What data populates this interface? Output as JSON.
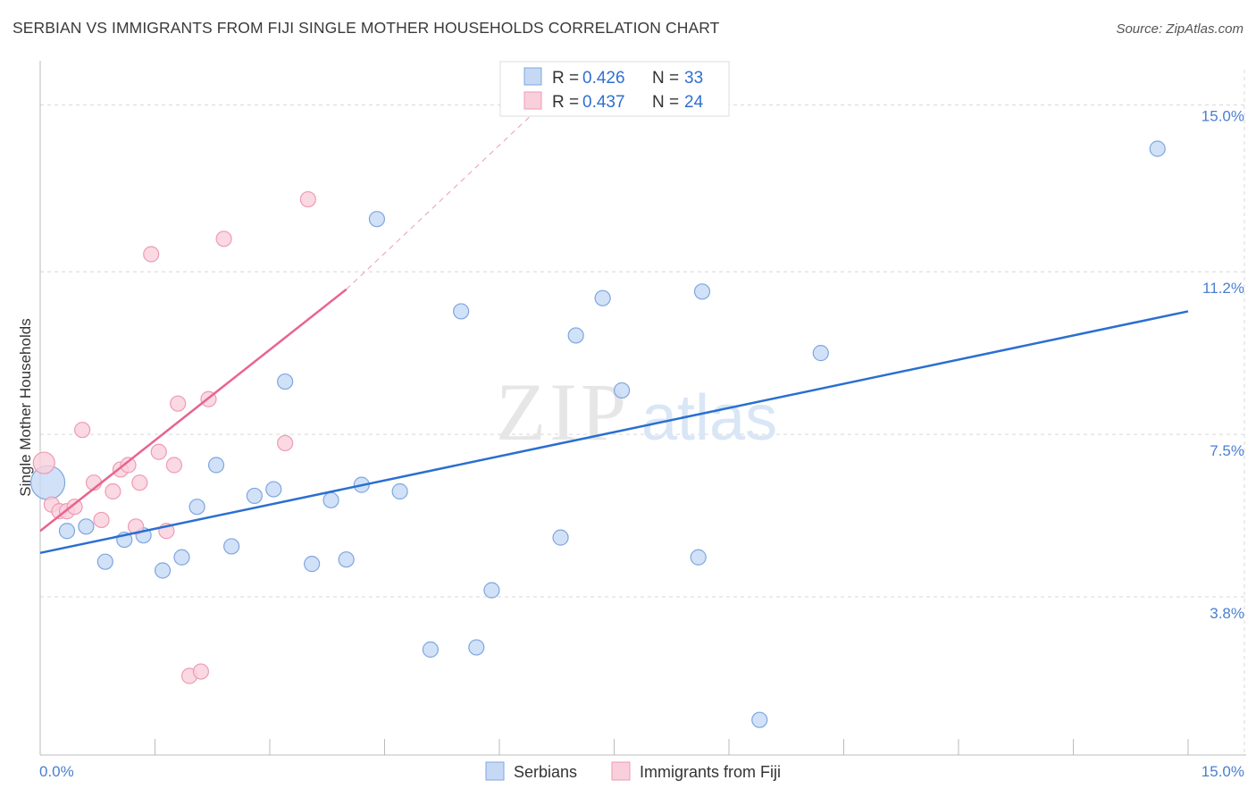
{
  "title": "SERBIAN VS IMMIGRANTS FROM FIJI SINGLE MOTHER HOUSEHOLDS CORRELATION CHART",
  "source": "Source: ZipAtlas.com",
  "colors": {
    "serbians_fill": "#c5d9f5",
    "serbians_stroke": "#7ea6e0",
    "serbians_line": "#2a6fd0",
    "fiji_fill": "#f9cfdc",
    "fiji_stroke": "#ee9ab5",
    "fiji_line": "#e8648f",
    "grid": "#d8d8d8",
    "tick_text": "#4a7fd0"
  },
  "chart_data": {
    "type": "scatter",
    "xlabel": "",
    "ylabel": "Single Mother Households",
    "xlim": [
      0,
      15
    ],
    "ylim": [
      0.2,
      15.8
    ],
    "x_tick_labels": [
      "0.0%",
      "15.0%"
    ],
    "y_ticks": [
      {
        "value": 15.0,
        "label": "15.0%"
      },
      {
        "value": 11.2,
        "label": "11.2%"
      },
      {
        "value": 7.5,
        "label": "7.5%"
      },
      {
        "value": 3.8,
        "label": "3.8%"
      }
    ],
    "legend": {
      "entries": [
        {
          "r_label": "R = ",
          "r_value": "0.426",
          "n_label": "N = ",
          "n_value": "33"
        },
        {
          "r_label": "R = ",
          "r_value": "0.437",
          "n_label": "N = ",
          "n_value": "24"
        }
      ]
    },
    "series": [
      {
        "name": "Serbians",
        "trend": {
          "x0": 0.0,
          "y0": 4.8,
          "x1": 15.0,
          "y1": 10.3
        },
        "points": [
          {
            "x": 0.1,
            "y": 6.4,
            "size": "large"
          },
          {
            "x": 0.35,
            "y": 5.3
          },
          {
            "x": 0.6,
            "y": 5.4
          },
          {
            "x": 0.85,
            "y": 4.6
          },
          {
            "x": 1.1,
            "y": 5.1
          },
          {
            "x": 1.35,
            "y": 5.2
          },
          {
            "x": 1.6,
            "y": 4.4
          },
          {
            "x": 1.85,
            "y": 4.7
          },
          {
            "x": 2.05,
            "y": 5.85
          },
          {
            "x": 2.3,
            "y": 6.8
          },
          {
            "x": 2.5,
            "y": 4.95
          },
          {
            "x": 2.8,
            "y": 6.1
          },
          {
            "x": 3.05,
            "y": 6.25
          },
          {
            "x": 3.2,
            "y": 8.7
          },
          {
            "x": 3.55,
            "y": 4.55
          },
          {
            "x": 3.8,
            "y": 6.0
          },
          {
            "x": 4.0,
            "y": 4.65
          },
          {
            "x": 4.2,
            "y": 6.35
          },
          {
            "x": 4.4,
            "y": 12.4
          },
          {
            "x": 4.7,
            "y": 6.2
          },
          {
            "x": 5.1,
            "y": 2.6
          },
          {
            "x": 5.5,
            "y": 10.3
          },
          {
            "x": 5.7,
            "y": 2.65
          },
          {
            "x": 5.9,
            "y": 3.95
          },
          {
            "x": 6.8,
            "y": 5.15
          },
          {
            "x": 7.0,
            "y": 9.75
          },
          {
            "x": 7.35,
            "y": 10.6
          },
          {
            "x": 7.6,
            "y": 8.5
          },
          {
            "x": 8.6,
            "y": 4.7
          },
          {
            "x": 8.65,
            "y": 10.75
          },
          {
            "x": 9.4,
            "y": 1.0
          },
          {
            "x": 10.2,
            "y": 9.35
          },
          {
            "x": 14.6,
            "y": 14.0
          }
        ]
      },
      {
        "name": "Immigrants from Fiji",
        "trend": {
          "x0": 0.0,
          "y0": 5.3,
          "x1": 4.0,
          "y1": 10.8
        },
        "trend_extension": {
          "x0": 4.0,
          "y0": 10.8,
          "x1": 6.5,
          "y1": 14.9
        },
        "points": [
          {
            "x": 0.05,
            "y": 6.85,
            "size": "medium"
          },
          {
            "x": 0.15,
            "y": 5.9
          },
          {
            "x": 0.25,
            "y": 5.75
          },
          {
            "x": 0.35,
            "y": 5.75
          },
          {
            "x": 0.45,
            "y": 5.85
          },
          {
            "x": 0.55,
            "y": 7.6
          },
          {
            "x": 0.7,
            "y": 6.4
          },
          {
            "x": 0.8,
            "y": 5.55
          },
          {
            "x": 0.95,
            "y": 6.2
          },
          {
            "x": 1.05,
            "y": 6.7
          },
          {
            "x": 1.15,
            "y": 6.8
          },
          {
            "x": 1.25,
            "y": 5.4
          },
          {
            "x": 1.3,
            "y": 6.4
          },
          {
            "x": 1.45,
            "y": 11.6
          },
          {
            "x": 1.55,
            "y": 7.1
          },
          {
            "x": 1.65,
            "y": 5.3
          },
          {
            "x": 1.75,
            "y": 6.8
          },
          {
            "x": 1.8,
            "y": 8.2
          },
          {
            "x": 1.95,
            "y": 2.0
          },
          {
            "x": 2.1,
            "y": 2.1
          },
          {
            "x": 2.2,
            "y": 8.3
          },
          {
            "x": 2.4,
            "y": 11.95
          },
          {
            "x": 3.2,
            "y": 7.3
          },
          {
            "x": 3.5,
            "y": 12.85
          }
        ]
      }
    ]
  }
}
